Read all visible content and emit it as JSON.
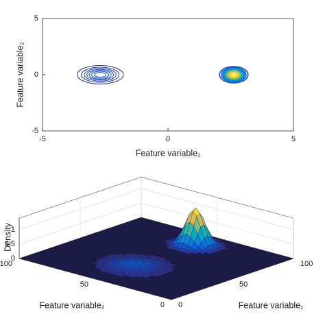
{
  "chart_data": [
    {
      "type": "contour",
      "xlabel": "Feature variable₁",
      "ylabel": "Feature variable₂",
      "xlim": [
        -5,
        5
      ],
      "ylim": [
        -5,
        5
      ],
      "xticks": [
        -5,
        0,
        5
      ],
      "yticks": [
        -5,
        0,
        5
      ],
      "components": [
        {
          "center_x": -2.7,
          "center_y": 0,
          "radius_x": 0.92,
          "radius_y": 0.82,
          "peak": 0.15,
          "rings": 7
        },
        {
          "center_x": 2.62,
          "center_y": 0,
          "radius_x": 0.57,
          "radius_y": 0.73,
          "peak": 1.3,
          "rings": 14
        }
      ]
    },
    {
      "type": "surface3d",
      "xlabel": "Feature variable₁",
      "ylabel": "Feature variable₂",
      "zlabel": "Density",
      "xlim": [
        0,
        100
      ],
      "ylim": [
        0,
        100
      ],
      "zlim": [
        0,
        1.4
      ],
      "xticks": [
        0,
        50,
        100
      ],
      "yticks": [
        0,
        50,
        100
      ],
      "zticks": [
        0,
        0.5,
        1
      ],
      "peaks": [
        {
          "x": 32,
          "y": 50,
          "height": 0.15,
          "spread": 9
        },
        {
          "x": 82,
          "y": 50,
          "height": 1.3,
          "spread": 5
        }
      ]
    }
  ]
}
